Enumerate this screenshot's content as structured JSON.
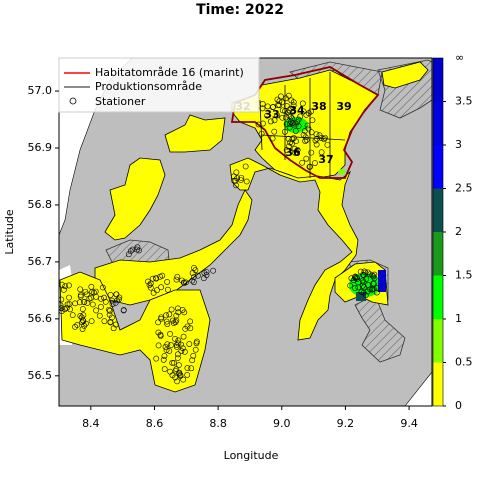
{
  "title": "Time: 2022",
  "axes": {
    "x_label": "Longitude",
    "y_label": "Latitude",
    "xlim": [
      8.3,
      9.472
    ],
    "ylim": [
      56.447,
      57.058
    ],
    "xticks": [
      8.4,
      8.6,
      8.8,
      {
        "value": 9,
        "label": "9.0"
      },
      9.2,
      9.4
    ],
    "yticks": [
      56.5,
      56.6,
      56.7,
      56.8,
      56.9,
      {
        "value": 57,
        "label": "57.0"
      }
    ]
  },
  "legend": [
    "Habitatområde 16 (marint)",
    "Produktionsområde",
    "Stationer"
  ],
  "area_labels": [
    "32",
    "33",
    "34",
    "38",
    "39",
    "36",
    "37"
  ],
  "colorbar": {
    "ticks": [
      0,
      0.5,
      1,
      1.5,
      2,
      2.5,
      3,
      3.5
    ],
    "top_label": "∞",
    "colors": [
      "#ffff00",
      "#80ff00",
      "#00ff00",
      "#1a9a1a",
      "#0b4f4f",
      "#0000ff",
      "#0000e0",
      "#0000cc"
    ]
  }
}
